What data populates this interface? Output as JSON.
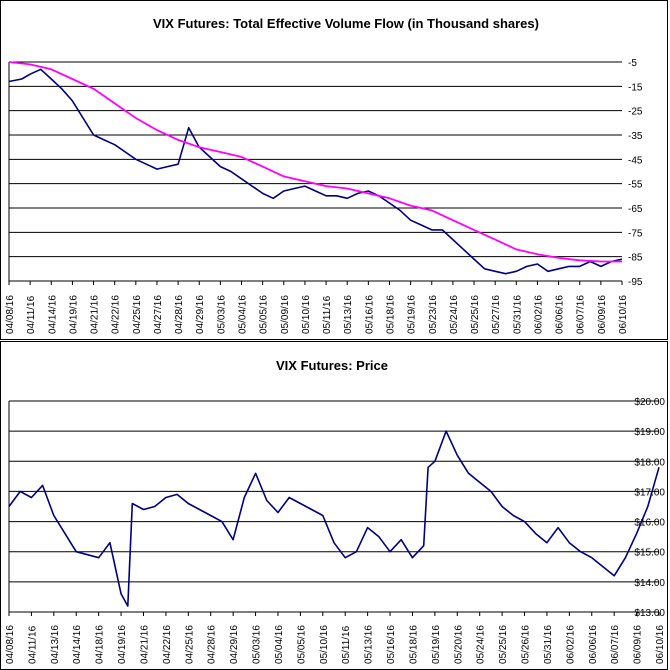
{
  "chart_data": [
    {
      "type": "line",
      "title": "VIX Futures: Total Effective Volume Flow (in Thousand shares)",
      "x_tick_labels": [
        "04/08/16",
        "04/11/16",
        "04/14/16",
        "04/19/16",
        "04/21/16",
        "04/22/16",
        "04/25/16",
        "04/27/16",
        "04/28/16",
        "04/29/16",
        "05/03/16",
        "05/04/16",
        "05/05/16",
        "05/09/16",
        "05/10/16",
        "05/11/16",
        "05/13/16",
        "05/16/16",
        "05/18/16",
        "05/19/16",
        "05/23/16",
        "05/24/16",
        "05/25/16",
        "05/27/16",
        "05/31/16",
        "06/02/16",
        "06/06/16",
        "06/07/16",
        "06/09/16",
        "06/10/16"
      ],
      "y_tick_labels": [
        "-5",
        "-15",
        "-25",
        "-35",
        "-45",
        "-55",
        "-65",
        "-75",
        "-85",
        "-95"
      ],
      "ylim": [
        -95,
        -5
      ],
      "y_axis_side": "right",
      "grid": true,
      "series": [
        {
          "color": "#000080",
          "x": [
            0,
            0.6,
            1,
            1.5,
            2,
            2.5,
            3,
            3.5,
            4,
            4.5,
            5,
            5.5,
            6,
            6.5,
            7,
            7.5,
            8,
            8.5,
            9,
            9.5,
            10,
            10.5,
            11,
            11.5,
            12,
            12.5,
            13,
            13.5,
            14,
            14.5,
            15,
            15.5,
            16,
            16.5,
            17,
            17.5,
            18,
            18.5,
            19,
            19.5,
            20,
            20.5,
            21,
            21.5,
            22,
            22.5,
            23,
            23.5,
            24,
            24.5,
            25,
            25.5,
            26,
            26.5,
            27,
            27.5,
            28,
            28.5,
            29
          ],
          "values": [
            -13,
            -12,
            -10,
            -8,
            -12,
            -16,
            -21,
            -28,
            -35,
            -37,
            -39,
            -42,
            -45,
            -47,
            -49,
            -48,
            -47,
            -32,
            -40,
            -44,
            -48,
            -50,
            -53,
            -56,
            -59,
            -61,
            -58,
            -57,
            -56,
            -58,
            -60,
            -60,
            -61,
            -59,
            -58,
            -60,
            -63,
            -66,
            -70,
            -72,
            -74,
            -74,
            -78,
            -82,
            -86,
            -90,
            -91,
            -92,
            -91,
            -89,
            -88,
            -91,
            -90,
            -89,
            -89,
            -87,
            -89,
            -87,
            -86
          ]
        },
        {
          "color": "#ff00ff",
          "x": [
            0,
            1,
            2,
            3,
            4,
            5,
            6,
            7,
            8,
            9,
            10,
            11,
            12,
            13,
            14,
            15,
            16,
            17,
            18,
            19,
            20,
            21,
            22,
            23,
            24,
            25,
            26,
            27,
            28,
            29
          ],
          "values": [
            -5,
            -6,
            -8,
            -12,
            -16,
            -22,
            -28,
            -33,
            -37,
            -40,
            -42,
            -44,
            -48,
            -52,
            -54,
            -56,
            -57,
            -59,
            -61,
            -64,
            -66,
            -70,
            -74,
            -78,
            -82,
            -84,
            -85.5,
            -86.5,
            -87,
            -87
          ]
        }
      ]
    },
    {
      "type": "line",
      "title": "VIX Futures: Price",
      "x_tick_labels": [
        "04/08/16",
        "04/11/16",
        "04/13/16",
        "04/14/16",
        "04/18/16",
        "04/19/16",
        "04/21/16",
        "04/22/16",
        "04/25/16",
        "04/28/16",
        "04/29/16",
        "05/03/16",
        "05/04/16",
        "05/05/16",
        "05/10/16",
        "05/11/16",
        "05/13/16",
        "05/16/16",
        "05/18/16",
        "05/19/16",
        "05/20/16",
        "05/24/16",
        "05/25/16",
        "05/26/16",
        "05/31/16",
        "06/02/16",
        "06/06/16",
        "06/07/16",
        "06/09/16",
        "06/10/16"
      ],
      "y_tick_labels": [
        "$20.00",
        "$19.00",
        "$18.00",
        "$17.00",
        "$16.00",
        "$15.00",
        "$14.00",
        "$13.00"
      ],
      "ylim": [
        13,
        20
      ],
      "y_axis_side": "right",
      "grid": true,
      "series": [
        {
          "color": "#000080",
          "x": [
            0,
            0.5,
            1,
            1.5,
            2,
            2.5,
            3,
            3.5,
            4,
            4.5,
            5,
            5.3,
            5.5,
            6,
            6.5,
            7,
            7.5,
            8,
            8.5,
            9,
            9.5,
            10,
            10.5,
            11,
            11.5,
            12,
            12.5,
            13,
            13.5,
            14,
            14.5,
            15,
            15.5,
            16,
            16.5,
            17,
            17.5,
            18,
            18.5,
            18.7,
            19,
            19.5,
            20,
            20.5,
            21,
            21.5,
            22,
            22.5,
            23,
            23.5,
            24,
            24.5,
            25,
            25.5,
            26,
            26.5,
            27,
            27.5,
            28,
            28.5,
            29
          ],
          "values": [
            16.5,
            17.0,
            16.8,
            17.2,
            16.2,
            15.6,
            15.0,
            14.9,
            14.8,
            15.3,
            13.6,
            13.2,
            16.6,
            16.4,
            16.5,
            16.8,
            16.9,
            16.6,
            16.4,
            16.2,
            16.0,
            15.4,
            16.8,
            17.6,
            16.7,
            16.3,
            16.8,
            16.6,
            16.4,
            16.2,
            15.3,
            14.8,
            15.0,
            15.8,
            15.5,
            15.0,
            15.4,
            14.8,
            15.2,
            17.8,
            18.0,
            19.0,
            18.2,
            17.6,
            17.3,
            17.0,
            16.5,
            16.2,
            16.0,
            15.6,
            15.3,
            15.8,
            15.3,
            15.0,
            14.8,
            14.5,
            14.2,
            14.8,
            15.6,
            16.5,
            17.8
          ]
        }
      ]
    }
  ]
}
